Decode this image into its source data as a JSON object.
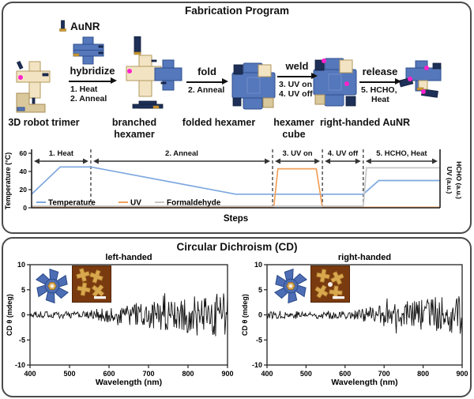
{
  "top_panel": {
    "title": "Fabrication Program",
    "aunr_label": "AuNR",
    "arrows": [
      {
        "action": "hybridize",
        "substeps": [
          "1. Heat",
          "2. Anneal"
        ]
      },
      {
        "action": "fold",
        "substeps": [
          "2. Anneal"
        ]
      },
      {
        "action": "weld",
        "substeps": [
          "3. UV on",
          "4. UV off"
        ]
      },
      {
        "action": "release",
        "substeps": [
          "5. HCHO,",
          "Heat"
        ]
      }
    ],
    "stages": [
      "3D robot trimer",
      "branched hexamer",
      "folded hexamer",
      "hexamer cube",
      "right-handed AuNR"
    ]
  },
  "bottom_panel": {
    "title": "Circular Dichroism (CD)"
  },
  "colors": {
    "structure_blue": "#5577bb",
    "structure_navy": "#1e3057",
    "structure_tan": "#f2e4c3",
    "accent_magenta": "#ff22cc",
    "temperature_line": "#7da7e0",
    "uv_line": "#f0a05a",
    "formaldehyde_line": "#c6c6c6",
    "cd_line": "#111111",
    "afm_background": "#7a3a0f",
    "afm_gold": "#d9a84e",
    "panel_border": "#4a4a4a"
  },
  "chart_data": [
    {
      "id": "fabrication_program",
      "type": "line",
      "xlabel": "Steps",
      "ylabel": "Temperature (°C)",
      "ylabel_right": [
        "UV (a.u.)",
        "HCHO (a.u.)"
      ],
      "x_unit": "program progress (%)",
      "ylim": [
        0,
        62
      ],
      "y_ticks": [
        0,
        20,
        40,
        60
      ],
      "grid": false,
      "legend_position": "bottom-inside",
      "regions": [
        {
          "label": "1. Heat",
          "from": 0,
          "to": 14.5
        },
        {
          "label": "2. Anneal",
          "from": 14.5,
          "to": 59
        },
        {
          "label": "3. UV on",
          "from": 59,
          "to": 71.2
        },
        {
          "label": "4. UV off",
          "from": 71.2,
          "to": 81.2
        },
        {
          "label": "5. HCHO, Heat",
          "from": 81.2,
          "to": 100
        }
      ],
      "series": [
        {
          "name": "Temperature",
          "color": "#7da7e0",
          "points": [
            [
              0,
              15
            ],
            [
              7,
              45
            ],
            [
              14.5,
              45
            ],
            [
              50,
              15
            ],
            [
              81.2,
              15
            ],
            [
              85,
              30
            ],
            [
              100,
              30
            ]
          ]
        },
        {
          "name": "UV",
          "color": "#f0a05a",
          "points": [
            [
              0,
              0.6
            ],
            [
              59.3,
              0.6
            ],
            [
              60.3,
              43
            ],
            [
              69.7,
              43
            ],
            [
              71.2,
              0.6
            ],
            [
              100,
              0.6
            ]
          ]
        },
        {
          "name": "Formaldehyde",
          "color": "#c6c6c6",
          "points": [
            [
              0,
              1.8
            ],
            [
              81.2,
              1.8
            ],
            [
              82,
              44
            ],
            [
              100,
              44
            ]
          ]
        }
      ]
    },
    {
      "id": "cd_left",
      "type": "line",
      "title": "left-handed",
      "xlabel": "Wavelength (nm)",
      "ylabel": "CD θ (mdeg)",
      "xlim": [
        400,
        900
      ],
      "ylim": [
        -10,
        10
      ],
      "x_ticks": [
        400,
        500,
        600,
        700,
        800,
        900
      ],
      "y_ticks": [
        10,
        5,
        0,
        -5,
        -10
      ],
      "series": [
        {
          "name": "CD spectrum",
          "color": "#111111",
          "signal": {
            "mean_mdeg": 0,
            "seed": 20,
            "n_points": 300,
            "base_amplitude_mdeg": 0.7,
            "max_amplitude_mdeg": 4.5,
            "noise_growth_start_nm": 545,
            "spike_limit_mdeg": 9.8
          },
          "signal_description": "noisy baseline about 0 mdeg; fluctuations grow above ~550 nm, spikes to ±9 mdeg near 700–900 nm"
        }
      ]
    },
    {
      "id": "cd_right",
      "type": "line",
      "title": "right-handed",
      "xlabel": "Wavelength (nm)",
      "ylabel": "CD θ (mdeg)",
      "xlim": [
        400,
        900
      ],
      "ylim": [
        -10,
        10
      ],
      "x_ticks": [
        400,
        500,
        600,
        700,
        800,
        900
      ],
      "y_ticks": [
        10,
        5,
        0,
        -5,
        -10
      ],
      "series": [
        {
          "name": "CD spectrum",
          "color": "#111111",
          "signal": {
            "mean_mdeg": 0,
            "seed": 77,
            "n_points": 300,
            "base_amplitude_mdeg": 0.8,
            "max_amplitude_mdeg": 4.2,
            "noise_growth_start_nm": 620,
            "spike_limit_mdeg": 8.8
          },
          "signal_description": "noisy baseline about 0 mdeg; fluctuations grow above ~630 nm, spikes to ±8 mdeg near 700–900 nm"
        }
      ]
    }
  ]
}
